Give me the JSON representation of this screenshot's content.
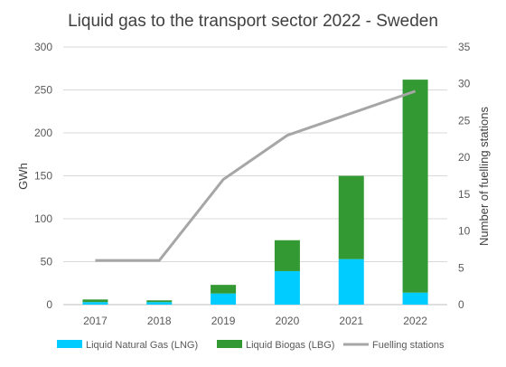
{
  "chart_data": {
    "type": "bar",
    "stacked": true,
    "title": "Liquid gas to the transport sector 2022 - Sweden",
    "categories": [
      "2017",
      "2018",
      "2019",
      "2020",
      "2021",
      "2022"
    ],
    "ylabel": "GWh",
    "y2label": "Number of fuelling stations",
    "ylim": [
      0,
      300
    ],
    "yticks": [
      0,
      50,
      100,
      150,
      200,
      250,
      300
    ],
    "y2lim": [
      0,
      35
    ],
    "y2ticks": [
      0,
      5,
      10,
      15,
      20,
      25,
      30,
      35
    ],
    "grid": true,
    "legend_position": "bottom",
    "series": [
      {
        "name": "Liquid Natural Gas (LNG)",
        "type": "bar",
        "axis": "left",
        "color": "#00CCFF",
        "values": [
          3,
          3,
          13,
          39,
          53,
          14
        ]
      },
      {
        "name": "Liquid Biogas (LBG)",
        "type": "bar",
        "axis": "left",
        "color": "#339933",
        "values": [
          3,
          2,
          10,
          36,
          97,
          248
        ]
      },
      {
        "name": "Fuelling stations",
        "type": "line",
        "axis": "right",
        "color": "#A6A6A6",
        "values": [
          6,
          6,
          17,
          23,
          26,
          29
        ]
      }
    ]
  }
}
